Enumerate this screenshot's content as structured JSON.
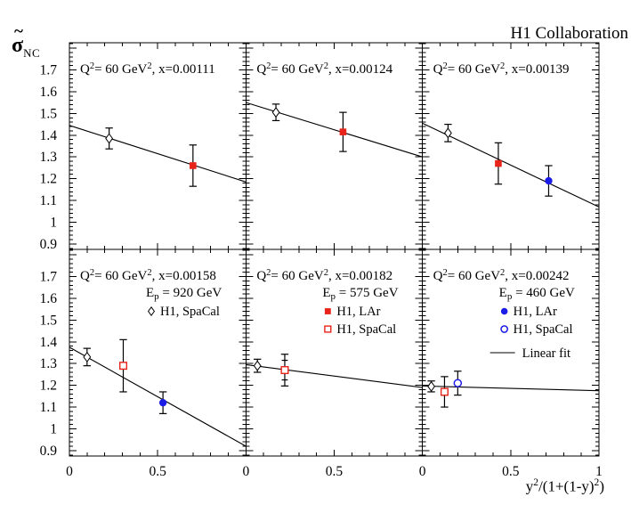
{
  "figure": {
    "title": "H1 Collaboration",
    "y_axis": {
      "sigma": "σ",
      "tilde": "~",
      "subscript": "NC"
    },
    "x_axis": {
      "label": "y²/(1+(1-y)²)"
    }
  },
  "chart_data": {
    "type": "scatter",
    "title": "H1 Collaboration",
    "xlabel": "y²/(1+(1-y)²)",
    "ylabel": "σ̃_NC (NC reduced cross section)",
    "layout": {
      "rows": 2,
      "cols": 3,
      "xlim": [
        0,
        1
      ],
      "ylim": [
        0.875,
        1.825
      ],
      "x_major_ticks": [
        0,
        0.5,
        1
      ],
      "x_minor_step": 0.1,
      "y_major_step": 0.1,
      "y_minor_step": 0.02,
      "y_tick_labels": [
        {
          "v": 0.9,
          "t": "0.9"
        },
        {
          "v": 1.0,
          "t": "1"
        },
        {
          "v": 1.1,
          "t": "1.1"
        },
        {
          "v": 1.2,
          "t": "1.2"
        },
        {
          "v": 1.3,
          "t": "1.3"
        },
        {
          "v": 1.4,
          "t": "1.4"
        },
        {
          "v": 1.5,
          "t": "1.5"
        },
        {
          "v": 1.6,
          "t": "1.6"
        },
        {
          "v": 1.7,
          "t": "1.7"
        }
      ],
      "x_tick_labels": [
        {
          "v": 0,
          "t": "0"
        },
        {
          "v": 0.5,
          "t": "0.5"
        }
      ],
      "x_end_tick_label": "1",
      "grid": false,
      "legend_position": "inside-bottom-row-panels"
    },
    "colors": {
      "black": "#000000",
      "red": "#e8231a",
      "blue": "#1c1ce8"
    },
    "panels": [
      {
        "label": "Q²= 60 GeV²,  x=0.00111",
        "q2_gev2": 60,
        "x_bjorken": 0.00111,
        "points": [
          {
            "series": "H1, SpaCal",
            "marker": "open-diamond",
            "color": "#000000",
            "x": 0.225,
            "y": 1.385,
            "yerr": 0.048
          },
          {
            "series": "H1, LAr",
            "marker": "filled-square",
            "color": "#e8231a",
            "x": 0.7,
            "y": 1.26,
            "yerr": 0.095
          }
        ],
        "fit": {
          "y_at_0": 1.445,
          "y_at_1": 1.185
        }
      },
      {
        "label": "Q²= 60 GeV²,  x=0.00124",
        "q2_gev2": 60,
        "x_bjorken": 0.00124,
        "points": [
          {
            "series": "H1, SpaCal",
            "marker": "open-diamond",
            "color": "#000000",
            "x": 0.17,
            "y": 1.505,
            "yerr": 0.038
          },
          {
            "series": "H1, LAr",
            "marker": "filled-square",
            "color": "#e8231a",
            "x": 0.55,
            "y": 1.415,
            "yerr": 0.09
          }
        ],
        "fit": {
          "y_at_0": 1.55,
          "y_at_1": 1.3
        }
      },
      {
        "label": "Q²= 60 GeV²,  x=0.00139",
        "q2_gev2": 60,
        "x_bjorken": 0.00139,
        "points": [
          {
            "series": "H1, SpaCal",
            "marker": "open-diamond",
            "color": "#000000",
            "x": 0.145,
            "y": 1.41,
            "yerr": 0.04
          },
          {
            "series": "H1, LAr",
            "marker": "filled-square",
            "color": "#e8231a",
            "x": 0.43,
            "y": 1.27,
            "yerr": 0.095
          },
          {
            "series": "H1, LAr",
            "marker": "filled-circle",
            "color": "#1c1ce8",
            "x": 0.715,
            "y": 1.19,
            "yerr": 0.07
          }
        ],
        "fit": {
          "y_at_0": 1.455,
          "y_at_1": 1.07
        }
      },
      {
        "label": "Q²= 60 GeV²,  x=0.00158",
        "q2_gev2": 60,
        "x_bjorken": 0.00158,
        "ep": {
          "pre": "E",
          "sub": "p",
          "post": " = 920 GeV"
        },
        "legend": [
          {
            "marker": "open-diamond",
            "color": "#000000",
            "label": "H1, SpaCal"
          }
        ],
        "points": [
          {
            "series": "H1, SpaCal",
            "marker": "open-diamond",
            "color": "#000000",
            "x": 0.1,
            "y": 1.33,
            "yerr": 0.04
          },
          {
            "series": "H1, SpaCal",
            "marker": "open-square",
            "color": "#e8231a",
            "x": 0.305,
            "y": 1.29,
            "yerr": 0.12
          },
          {
            "series": "H1, LAr",
            "marker": "filled-circle",
            "color": "#1c1ce8",
            "x": 0.53,
            "y": 1.12,
            "yerr": 0.05
          }
        ],
        "fit": {
          "y_at_0": 1.375,
          "y_at_1": 0.92
        }
      },
      {
        "label": "Q²= 60 GeV²,  x=0.00182",
        "q2_gev2": 60,
        "x_bjorken": 0.00182,
        "ep": {
          "pre": "E",
          "sub": "p",
          "post": " = 575 GeV"
        },
        "legend": [
          {
            "marker": "filled-square",
            "color": "#e8231a",
            "label": "H1, LAr"
          },
          {
            "marker": "open-square",
            "color": "#e8231a",
            "label": "H1, SpaCal"
          }
        ],
        "points": [
          {
            "series": "H1, SpaCal",
            "marker": "open-diamond",
            "color": "#000000",
            "x": 0.065,
            "y": 1.29,
            "yerr": 0.03
          },
          {
            "series": "H1, SpaCal",
            "marker": "open-square",
            "color": "#e8231a",
            "x": 0.22,
            "y": 1.27,
            "yerr": 0.073,
            "yerr_inner": 0.045
          }
        ],
        "fit": {
          "y_at_0": 1.295,
          "y_at_1": 1.19
        }
      },
      {
        "label": "Q²= 60 GeV²,  x=0.00242",
        "q2_gev2": 60,
        "x_bjorken": 0.00242,
        "ep": {
          "pre": "E",
          "sub": "p",
          "post": " = 460 GeV"
        },
        "legend": [
          {
            "marker": "filled-circle",
            "color": "#1c1ce8",
            "label": "H1, LAr"
          },
          {
            "marker": "open-circle",
            "color": "#1c1ce8",
            "label": "H1, SpaCal"
          }
        ],
        "fit_legend": {
          "label": "Linear fit"
        },
        "points": [
          {
            "series": "H1, SpaCal",
            "marker": "open-diamond",
            "color": "#000000",
            "x": 0.05,
            "y": 1.195,
            "yerr": 0.025
          },
          {
            "series": "H1, SpaCal",
            "marker": "open-square",
            "color": "#e8231a",
            "x": 0.125,
            "y": 1.17,
            "yerr": 0.07
          },
          {
            "series": "H1, LAr",
            "marker": "open-circle",
            "color": "#1c1ce8",
            "x": 0.2,
            "y": 1.21,
            "yerr": 0.055
          }
        ],
        "fit": {
          "y_at_0": 1.197,
          "y_at_1": 1.175
        }
      }
    ]
  }
}
